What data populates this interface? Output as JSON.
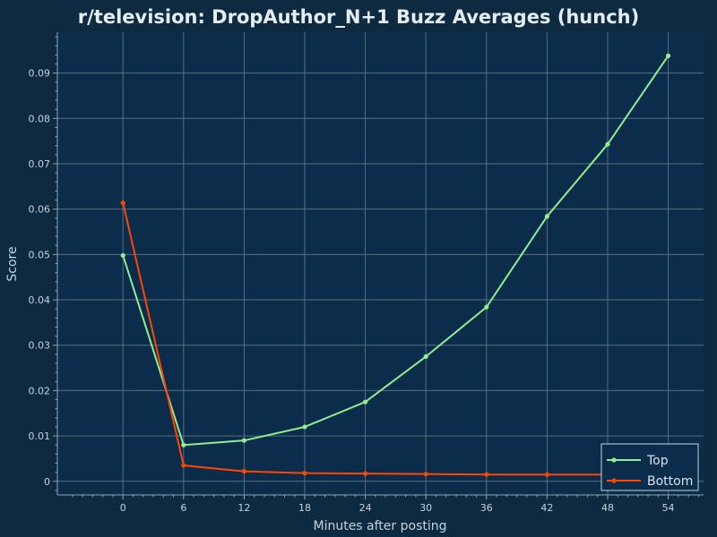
{
  "chart_data": {
    "type": "line",
    "title": "r/television: DropAuthor_N+1 Buzz Averages (hunch)",
    "xlabel": "Minutes after posting",
    "ylabel": "Score",
    "xlim": [
      -6.5,
      57.5
    ],
    "ylim": [
      -0.003,
      0.099
    ],
    "x_ticks": [
      "0",
      "6",
      "12",
      "18",
      "24",
      "30",
      "36",
      "42",
      "48",
      "54"
    ],
    "y_ticks": [
      "0",
      "0.01",
      "0.02",
      "0.03",
      "0.04",
      "0.05",
      "0.06",
      "0.07",
      "0.08",
      "0.09"
    ],
    "grid": true,
    "legend_position": "bottom-right",
    "series": [
      {
        "name": "Top",
        "color": "#90ee90",
        "x": [
          0,
          6,
          12,
          18,
          24,
          30,
          36,
          42,
          48,
          54
        ],
        "y": [
          0.0498,
          0.008,
          0.009,
          0.012,
          0.0175,
          0.0275,
          0.0384,
          0.0584,
          0.0743,
          0.0938
        ]
      },
      {
        "name": "Bottom",
        "color": "#ff4500",
        "x": [
          0,
          6,
          12,
          18,
          24,
          30,
          36,
          42,
          48,
          54
        ],
        "y": [
          0.0614,
          0.0035,
          0.0022,
          0.0018,
          0.0017,
          0.0016,
          0.0015,
          0.0015,
          0.0015,
          0.0015
        ]
      }
    ]
  }
}
